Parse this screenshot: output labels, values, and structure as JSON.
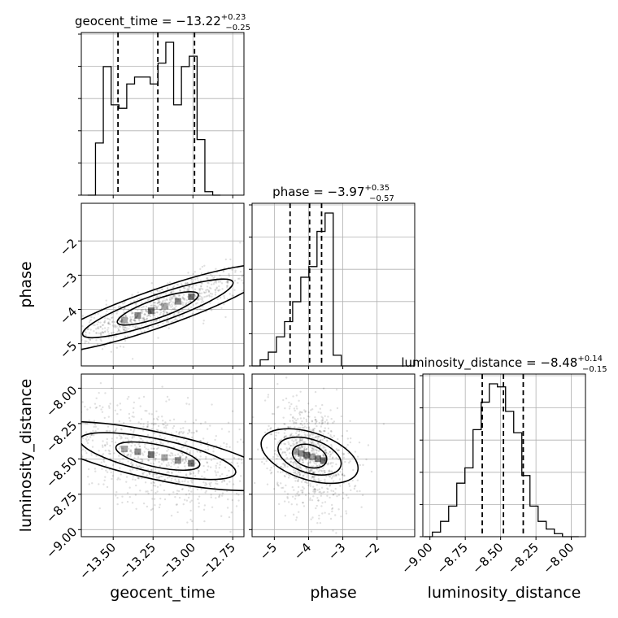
{
  "chart_data": {
    "type": "corner",
    "parameters": [
      "geocent_time",
      "phase",
      "luminosity_distance"
    ],
    "panel_titles": [
      {
        "param": "geocent_time",
        "prefix": "geocent_time = −13.22",
        "plus": "+0.23",
        "minus": "−0.25"
      },
      {
        "param": "phase",
        "prefix": "phase = −3.97",
        "plus": "+0.35",
        "minus": "−0.57"
      },
      {
        "param": "luminosity_distance",
        "prefix": "luminosity_distance = −8.48",
        "plus": "+0.14",
        "minus": "−0.15"
      }
    ],
    "axis_labels": {
      "x": [
        "geocent_time",
        "phase",
        "luminosity_distance"
      ],
      "y": [
        "phase",
        "luminosity_distance"
      ]
    },
    "ranges": {
      "geocent_time": [
        -13.7,
        -12.68
      ],
      "phase": [
        -5.65,
        -0.9
      ],
      "luminosity_distance": [
        -9.05,
        -7.9
      ]
    },
    "ticks": {
      "geocent_time": {
        "values": [
          -13.5,
          -13.25,
          -13.0,
          -12.75
        ],
        "labels": [
          "−13.50",
          "−13.25",
          "−13.00",
          "−12.75"
        ]
      },
      "phase": {
        "values": [
          -5,
          -4,
          -3,
          -2
        ],
        "labels": [
          "−5",
          "−4",
          "−3",
          "−2"
        ]
      },
      "luminosity_distance": {
        "values": [
          -9.0,
          -8.75,
          -8.5,
          -8.25,
          -8.0
        ],
        "labels": [
          "−9.00",
          "−8.75",
          "−8.50",
          "−8.25",
          "−8.00"
        ]
      }
    },
    "quantile_lines": {
      "geocent_time": [
        -13.47,
        -13.22,
        -12.99
      ],
      "phase": [
        -4.54,
        -3.97,
        -3.62
      ],
      "luminosity_distance": [
        -8.63,
        -8.48,
        -8.34
      ]
    },
    "histograms": {
      "geocent_time": {
        "edges_start": -13.66,
        "bin_width": 0.049,
        "counts": [
          0,
          30,
          74,
          52,
          50,
          64,
          68,
          68,
          64,
          76,
          88,
          52,
          74,
          80,
          32,
          2,
          0
        ]
      },
      "phase": {
        "edges_start": -5.65,
        "bin_width": 0.237,
        "counts": [
          0,
          4,
          9,
          19,
          29,
          42,
          58,
          65,
          88,
          100,
          7,
          0,
          0,
          0,
          0,
          0,
          0,
          0,
          0,
          0
        ]
      },
      "luminosity_distance": {
        "edges_start": -9.04,
        "bin_width": 0.0575,
        "counts": [
          0,
          3,
          10,
          20,
          35,
          45,
          70,
          88,
          100,
          98,
          82,
          68,
          40,
          20,
          10,
          5,
          2,
          0,
          0
        ]
      }
    },
    "grid": true
  }
}
